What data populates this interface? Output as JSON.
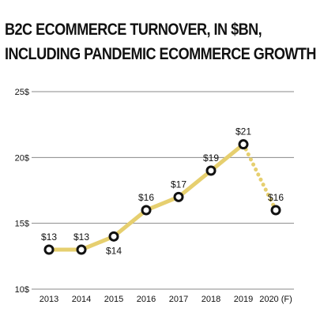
{
  "title_lines": [
    "B2C ECOMMERCE TURNOVER, IN $BN,",
    "INCLUDING PANDEMIC ECOMMERCE GROWTH"
  ],
  "colors": {
    "line": "#e6cf6f",
    "grid": "#888888",
    "marker_stroke": "#111111",
    "marker_fill": "#ffffff",
    "text": "#111111"
  },
  "chart_data": {
    "type": "line",
    "title": "B2C ECOMMERCE TURNOVER, IN $BN, INCLUDING PANDEMIC ECOMMERCE GROWTH",
    "xlabel": "",
    "ylabel": "",
    "categories": [
      "2013",
      "2014",
      "2015",
      "2016",
      "2017",
      "2018",
      "2019",
      "2020 (F)"
    ],
    "values": [
      13,
      13,
      14,
      16,
      17,
      19,
      21,
      16
    ],
    "data_labels": [
      "$13",
      "$13",
      "$14",
      "$16",
      "$17",
      "$19",
      "$21",
      "$16"
    ],
    "forecast_from_index": 6,
    "ylim": [
      10,
      25
    ],
    "yticks": [
      10,
      15,
      20,
      25
    ],
    "ytick_labels": [
      "10$",
      "15$",
      "20$",
      "25$"
    ],
    "grid": true,
    "legend": "none"
  }
}
